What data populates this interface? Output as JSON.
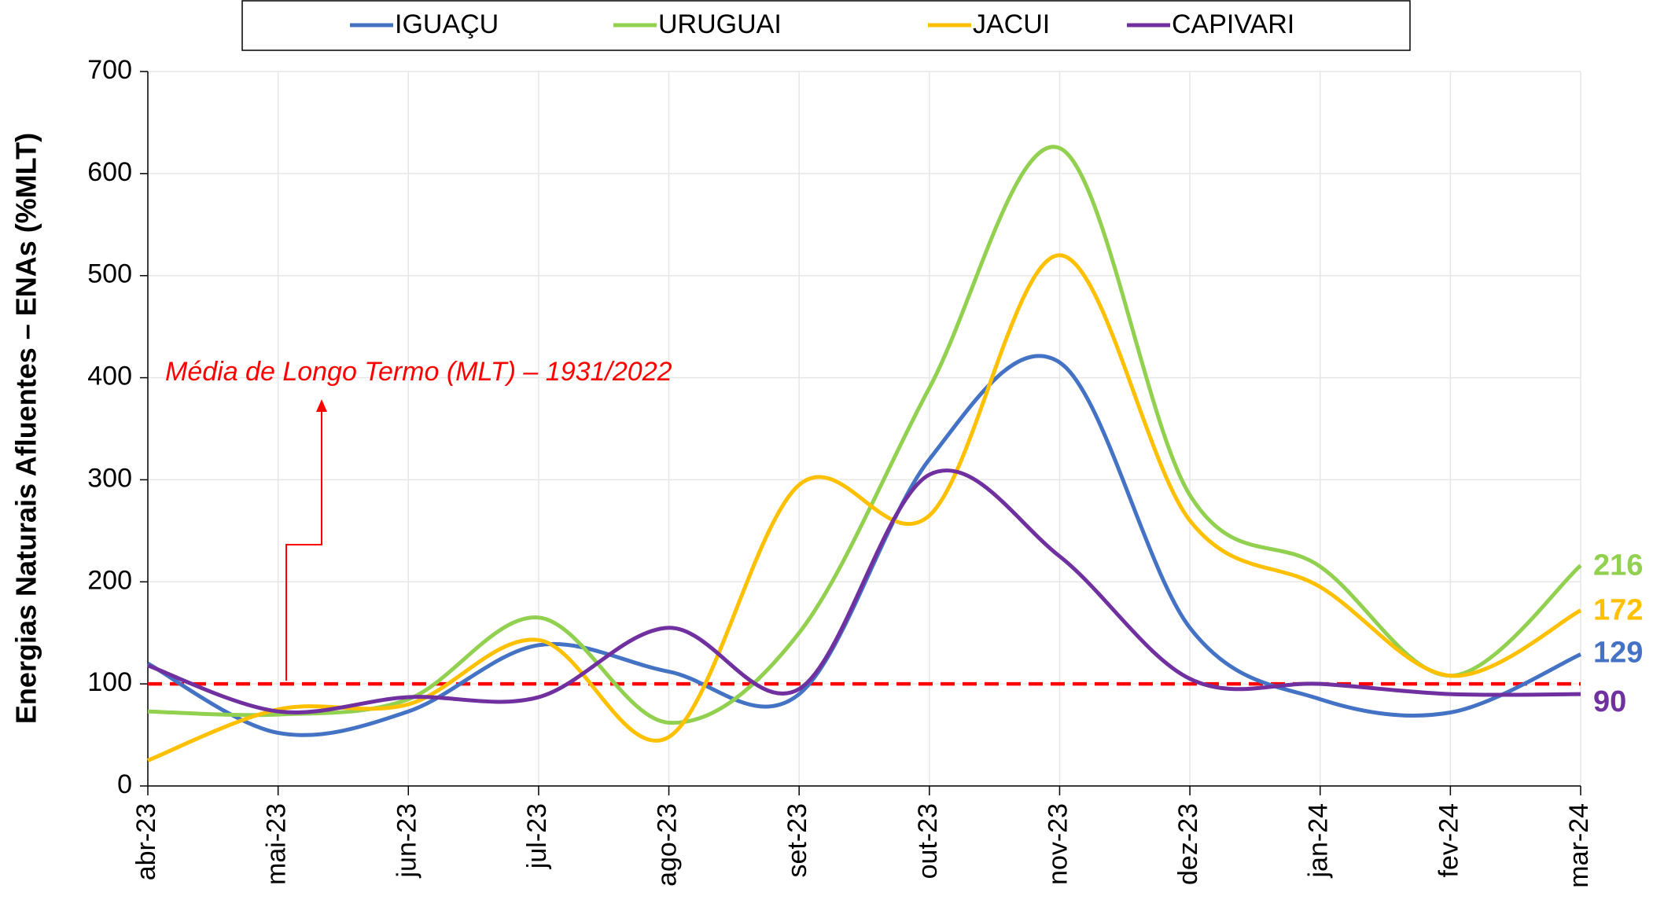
{
  "chart_data": {
    "type": "line",
    "y_label": "Energias Naturais Afluentes – ENAs (%MLT)",
    "categories": [
      "abr-23",
      "mai-23",
      "jun-23",
      "jul-23",
      "ago-23",
      "set-23",
      "out-23",
      "nov-23",
      "dez-23",
      "jan-24",
      "fev-24",
      "mar-24"
    ],
    "series": [
      {
        "name": "IGUAÇU",
        "color": "#4472c4",
        "values": [
          120,
          52,
          73,
          138,
          112,
          90,
          320,
          415,
          155,
          85,
          72,
          129
        ]
      },
      {
        "name": "URUGUAI",
        "color": "#92d050",
        "values": [
          73,
          70,
          85,
          165,
          62,
          150,
          390,
          625,
          285,
          215,
          108,
          216
        ]
      },
      {
        "name": "JACUI",
        "color": "#ffc000",
        "values": [
          25,
          75,
          80,
          143,
          48,
          295,
          265,
          520,
          260,
          195,
          108,
          172
        ]
      },
      {
        "name": "CAPIVARI",
        "color": "#7030a0",
        "values": [
          118,
          73,
          87,
          87,
          155,
          95,
          305,
          225,
          105,
          100,
          90,
          90
        ]
      }
    ],
    "reference": {
      "value": 100,
      "label": "Média de Longo Termo (MLT) – 1931/2022",
      "color": "#ff0000"
    },
    "ylim": [
      0,
      700
    ],
    "yticks": [
      0,
      100,
      200,
      300,
      400,
      500,
      600,
      700
    ],
    "grid": true,
    "legend": "top"
  }
}
